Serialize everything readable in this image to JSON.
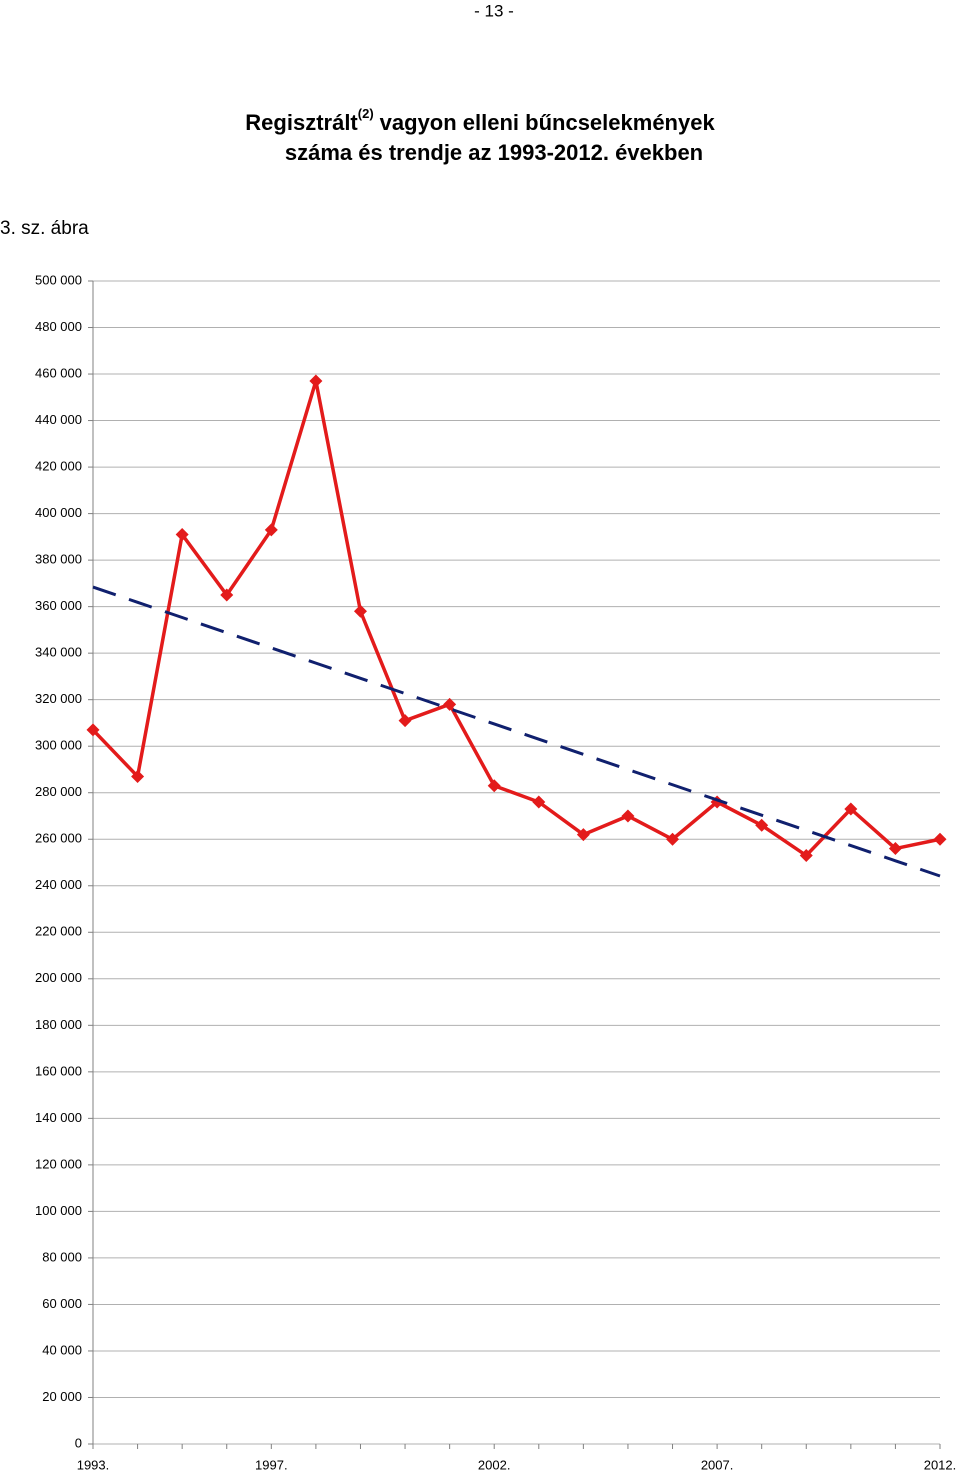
{
  "page_number": "- 13 -",
  "chart_data": {
    "type": "line",
    "title_parts": {
      "line1_start": "Regisztrált",
      "superscript": "(2)",
      "line1_end": "vagyon elleni bűncselekmények",
      "line2": "száma és trendje az 1993-2012. években"
    },
    "figure_label": "3. sz. ábra",
    "categories": [
      "1993.",
      null,
      null,
      null,
      "1997.",
      null,
      null,
      null,
      null,
      "2002.",
      null,
      null,
      null,
      null,
      "2007.",
      null,
      null,
      null,
      null,
      "2012."
    ],
    "series": [
      {
        "color": "#e31b1b",
        "style": "solid",
        "markers": true,
        "values": [
          307000,
          287000,
          391000,
          365000,
          393000,
          457000,
          358000,
          311000,
          318000,
          283000,
          276000,
          262000,
          270000,
          260000,
          276000,
          266000,
          253000,
          273000,
          256000,
          260000
        ]
      },
      {
        "color": "#10206e",
        "style": "dashed",
        "markers": false,
        "values": [
          368400,
          361860,
          355330,
          348790,
          342250,
          335720,
          329180,
          322640,
          316110,
          309570,
          303030,
          296500,
          289960,
          283420,
          276890,
          270350,
          263810,
          257280,
          250740,
          244200
        ]
      }
    ],
    "ylim": [
      0,
      500000
    ],
    "yticks": [
      0,
      {
        "value": 20000,
        "label": "20 000"
      },
      {
        "value": 40000,
        "label": "40 000"
      },
      {
        "value": 60000,
        "label": "60 000"
      },
      {
        "value": 80000,
        "label": "80 000"
      },
      {
        "value": 100000,
        "label": "100 000"
      },
      {
        "value": 120000,
        "label": "120 000"
      },
      {
        "value": 140000,
        "label": "140 000"
      },
      {
        "value": 160000,
        "label": "160 000"
      },
      {
        "value": 180000,
        "label": "180 000"
      },
      {
        "value": 200000,
        "label": "200 000"
      },
      {
        "value": 220000,
        "label": "220 000"
      },
      {
        "value": 240000,
        "label": "240 000"
      },
      {
        "value": 260000,
        "label": "260 000"
      },
      {
        "value": 280000,
        "label": "280 000"
      },
      {
        "value": 300000,
        "label": "300 000"
      },
      {
        "value": 320000,
        "label": "320 000"
      },
      {
        "value": 340000,
        "label": "340 000"
      },
      {
        "value": 360000,
        "label": "360 000"
      },
      {
        "value": 380000,
        "label": "380 000"
      },
      {
        "value": 400000,
        "label": "400 000"
      },
      {
        "value": 420000,
        "label": "420 000"
      },
      {
        "value": 440000,
        "label": "440 000"
      },
      {
        "value": 460000,
        "label": "460 000"
      },
      {
        "value": 480000,
        "label": "480 000"
      },
      {
        "value": 500000,
        "label": "500 000"
      }
    ],
    "grid": true
  }
}
